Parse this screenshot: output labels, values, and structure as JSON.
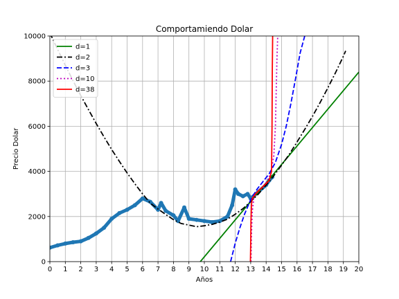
{
  "chart_data": {
    "type": "line",
    "title": "Comportamiendo Dolar",
    "xlabel": "Años",
    "ylabel": "Precio Dolar",
    "xlim": [
      0,
      20
    ],
    "ylim": [
      0,
      10000
    ],
    "xticks": [
      0,
      1,
      2,
      3,
      4,
      5,
      6,
      7,
      8,
      9,
      10,
      11,
      12,
      13,
      14,
      15,
      16,
      17,
      18,
      19,
      20
    ],
    "yticks": [
      0,
      2000,
      4000,
      6000,
      8000,
      10000
    ],
    "grid": true,
    "legend_position": "top-left",
    "data_series": {
      "color": "#1f77b4",
      "x": [
        0,
        0.5,
        1,
        1.5,
        2,
        2.5,
        3,
        3.5,
        4,
        4.5,
        5,
        5.5,
        6,
        6.5,
        7,
        7.2,
        7.5,
        8,
        8.3,
        8.7,
        9,
        9.5,
        10,
        10.5,
        11,
        11.5,
        11.8,
        12,
        12.2,
        12.5,
        12.8,
        13,
        13.5,
        14,
        14.2,
        14.4
      ],
      "y": [
        620,
        720,
        800,
        860,
        900,
        1050,
        1250,
        1500,
        1900,
        2150,
        2300,
        2500,
        2800,
        2650,
        2300,
        2600,
        2250,
        2050,
        1800,
        2400,
        1900,
        1850,
        1800,
        1750,
        1800,
        2000,
        2500,
        3200,
        3000,
        2900,
        3000,
        2800,
        3100,
        3400,
        3600,
        3750
      ]
    },
    "series": [
      {
        "name": "d=1",
        "color": "#008000",
        "dash": "solid",
        "width": 1.8,
        "x": [
          9.74,
          20
        ],
        "y": [
          0,
          8400
        ]
      },
      {
        "name": "d=2",
        "color": "#000000",
        "dash": "dashdot",
        "width": 1.8,
        "x": [
          0,
          0.5,
          1,
          1.5,
          2,
          2.5,
          3,
          3.5,
          4,
          4.5,
          5,
          5.5,
          6,
          6.5,
          7,
          7.5,
          8,
          8.5,
          9,
          9.5,
          10,
          10.5,
          11,
          11.5,
          12,
          12.5,
          13,
          13.5,
          14,
          14.5,
          15,
          15.5,
          16,
          16.5,
          17,
          17.5,
          18,
          18.5,
          19,
          19.15
        ],
        "y": [
          10135,
          9406,
          8700,
          8020,
          7360,
          6730,
          6120,
          5530,
          4970,
          4440,
          3930,
          3450,
          3000,
          2590,
          2330,
          2090,
          1860,
          1690,
          1620,
          1550,
          1590,
          1650,
          1750,
          1880,
          2100,
          2350,
          2660,
          3000,
          3390,
          3810,
          4275,
          4760,
          5300,
          5860,
          6440,
          7060,
          7710,
          8390,
          9100,
          9340
        ]
      },
      {
        "name": "d=3",
        "color": "#0000ff",
        "dash": "dashed",
        "width": 1.8,
        "x": [
          11.7,
          12,
          12.3,
          12.6,
          13,
          13.4,
          13.8,
          14.2,
          14.6,
          15,
          15.3,
          15.6,
          15.9,
          16.2,
          16.5
        ],
        "y": [
          0,
          820,
          1500,
          2100,
          2750,
          3200,
          3550,
          3900,
          4400,
          5200,
          6000,
          7000,
          8100,
          9250,
          10000
        ]
      },
      {
        "name": "d=10",
        "color": "#bf00bf",
        "dash": "dotted",
        "width": 1.8,
        "x": [
          13.02,
          13.05,
          13.1,
          13.2,
          13.4,
          13.7,
          14,
          14.3,
          14.5,
          14.6,
          14.65,
          14.7,
          14.75
        ],
        "y": [
          0,
          1200,
          2200,
          2800,
          3050,
          3250,
          3500,
          3900,
          4700,
          6000,
          7500,
          9000,
          10000
        ]
      },
      {
        "name": "d=38",
        "color": "#ff0000",
        "dash": "solid",
        "width": 1.8,
        "x": [
          12.98,
          13.0,
          13.02,
          13.05,
          13.1,
          13.3,
          13.6,
          13.9,
          14.2,
          14.35,
          14.38,
          14.4,
          14.42
        ],
        "y": [
          0,
          800,
          1800,
          2500,
          2800,
          3000,
          3200,
          3400,
          3600,
          4000,
          6000,
          8500,
          10000
        ]
      }
    ]
  }
}
